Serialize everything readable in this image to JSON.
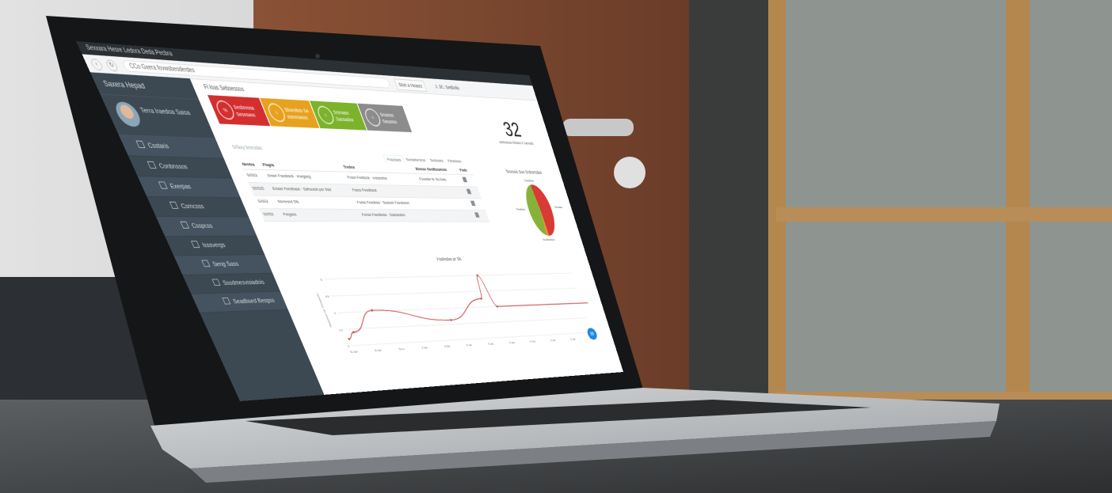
{
  "window": {
    "title": "Sexxara Hesre Ledora Deda Pecbra"
  },
  "browser": {
    "url": "CCo Gxera fovwsbeoderdes",
    "action_button": "Stori a Heasrz",
    "action_link": "J. 3C. Seitbolis"
  },
  "sidebar": {
    "brand": "Saxera Hepad",
    "user_name": "Terra Iraedoa Saisa",
    "items": [
      {
        "label": "Csstaris",
        "icon": "document-icon"
      },
      {
        "label": "Conbnssos",
        "icon": "clipboard-icon"
      },
      {
        "label": "Exerpas",
        "icon": "folder-icon"
      },
      {
        "label": "Csrncsss",
        "icon": "chat-icon"
      },
      {
        "label": "Csspcss",
        "icon": "square-icon"
      },
      {
        "label": "Isssvergs",
        "icon": "tools-icon"
      },
      {
        "label": "Seng Sass",
        "icon": "file-icon"
      },
      {
        "label": "Sssdmesvisiadois",
        "icon": "image-icon"
      },
      {
        "label": "Seadbsed Besgss",
        "icon": "check-icon"
      }
    ]
  },
  "main": {
    "breadcrumb": "Fl loas Sebsessos",
    "kpis": [
      {
        "label": "Sesbressa Sesesass",
        "color": "#d32f2f",
        "icon": "%"
      },
      {
        "label": "Sbsesbss Se ssesrsasss",
        "color": "#e6a21f",
        "icon": "○"
      },
      {
        "label": "Srsrsass Sassadsa",
        "color": "#7cb32b",
        "icon": "○"
      },
      {
        "label": "Srsasss Sasasss",
        "color": "#8c8c8c",
        "icon": "○"
      }
    ],
    "big_number": {
      "value": "32",
      "caption": "selbrsdoss fsfsdos d' sarvdda"
    },
    "section_title": "Srfaxy brsrsdas",
    "tabs": [
      "Fsscsscs",
      "Sorsslsvrsrss",
      "Sxstuses",
      "Fsnessss"
    ],
    "table": {
      "columns": [
        "Nentra",
        "Fisgra",
        "Tredos",
        "Elxsso Sosfbssmsis",
        "Fsde"
      ],
      "rows": [
        [
          "S/0S3",
          "Xmsrr Fsesbsck · enegseg",
          "Frssn Fesbsck · sresestse",
          "Fsosder fe Sd foes",
          "edit-icon"
        ],
        [
          "S0S3S",
          "Ersssr Feedback · Ssfrsosdr.psr Ssd",
          "Fsscs Fesdbsck",
          "",
          "edit-icon"
        ],
        [
          "S/0S3",
          "Nsmesrd Sfs",
          "Fssss Fesdbsd · Sssbstr Fsesbesd",
          "",
          "edit-icon"
        ],
        [
          "S/0S3",
          "Fregses",
          "Fsrssr Feedbsss · Sssrsestrs",
          "",
          "edit-icon"
        ]
      ]
    },
    "fab_icon": "chat-icon"
  },
  "chart_data": [
    {
      "type": "pie",
      "title": "Tesrssis Sus Srdssrsdas",
      "slices": [
        {
          "label": "Tsndrea",
          "value": 52,
          "color": "#d83a34"
        },
        {
          "label": "Ss dbrsdsss",
          "value": 3,
          "color": "#ef8a2c"
        },
        {
          "label": "Tsnsbsss",
          "value": 45,
          "color": "#86b23a"
        }
      ],
      "top_label": "Tssdsbsa"
    },
    {
      "type": "line",
      "title": "Fsslrsdas pr Sb",
      "ylabel": "Ssrsrsess ssr Ssrsaseso",
      "yticks": [
        "0",
        "1.5",
        "3",
        "4.5",
        "6"
      ],
      "ylim": [
        0,
        6.5
      ],
      "categories": [
        "5c Jan",
        "5t Jan",
        "5t en",
        "5 Jan",
        "5 Sth",
        "5 Jan",
        "5 Jan",
        "5 Jan",
        "5 Jan",
        "5 Jan",
        "5 Jan",
        "5c Sn"
      ],
      "points": [
        [
          0,
          0.6
        ],
        [
          0.3,
          1.2
        ],
        [
          1.4,
          3.1
        ],
        [
          4.6,
          1.9
        ],
        [
          6.3,
          3.8
        ],
        [
          6.5,
          6.0
        ],
        [
          6.9,
          3.0
        ],
        [
          11.8,
          3.0
        ]
      ],
      "color": "#c9484a"
    }
  ]
}
